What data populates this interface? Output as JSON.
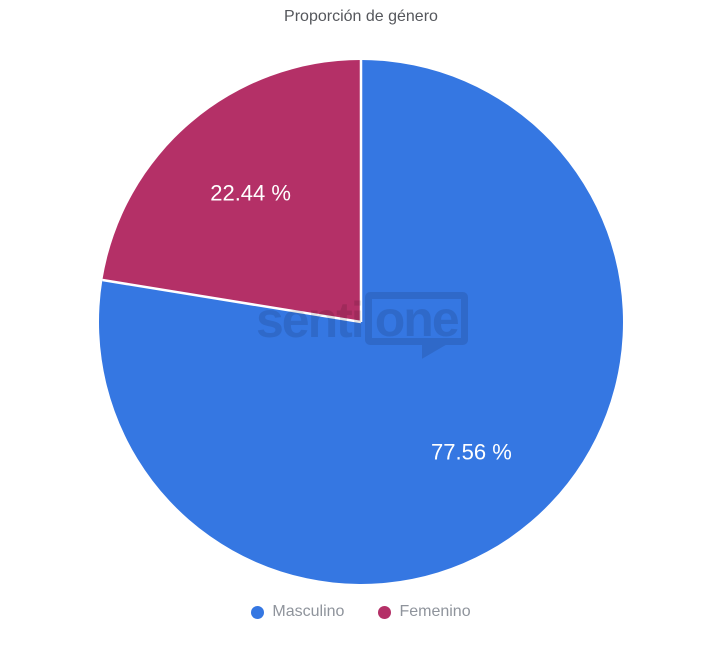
{
  "title": "Proporción de género",
  "watermark": {
    "text_left": "senti",
    "text_bubble": "one"
  },
  "colors": {
    "background": "#ffffff",
    "masculino_blue": "#3577e2",
    "femenino_magenta": "#b43067",
    "slice_stroke": "#ffffff",
    "slice_label_text": "#ffffff",
    "title_text": "#55575c",
    "legend_text": "#8f949c",
    "watermark_overlay": "rgba(0,0,0,0.11)"
  },
  "chart_data": {
    "type": "pie",
    "title": "Proporción de género",
    "labels": [
      "Masculino",
      "Femenino"
    ],
    "values": [
      77.56,
      22.44
    ],
    "value_labels": [
      "77.56 %",
      "22.44 %"
    ],
    "colors": [
      "#3577e2",
      "#b43067"
    ],
    "unit": "%",
    "start_angle_deg": 0,
    "direction": "clockwise",
    "legend_position": "bottom",
    "grid": false
  }
}
